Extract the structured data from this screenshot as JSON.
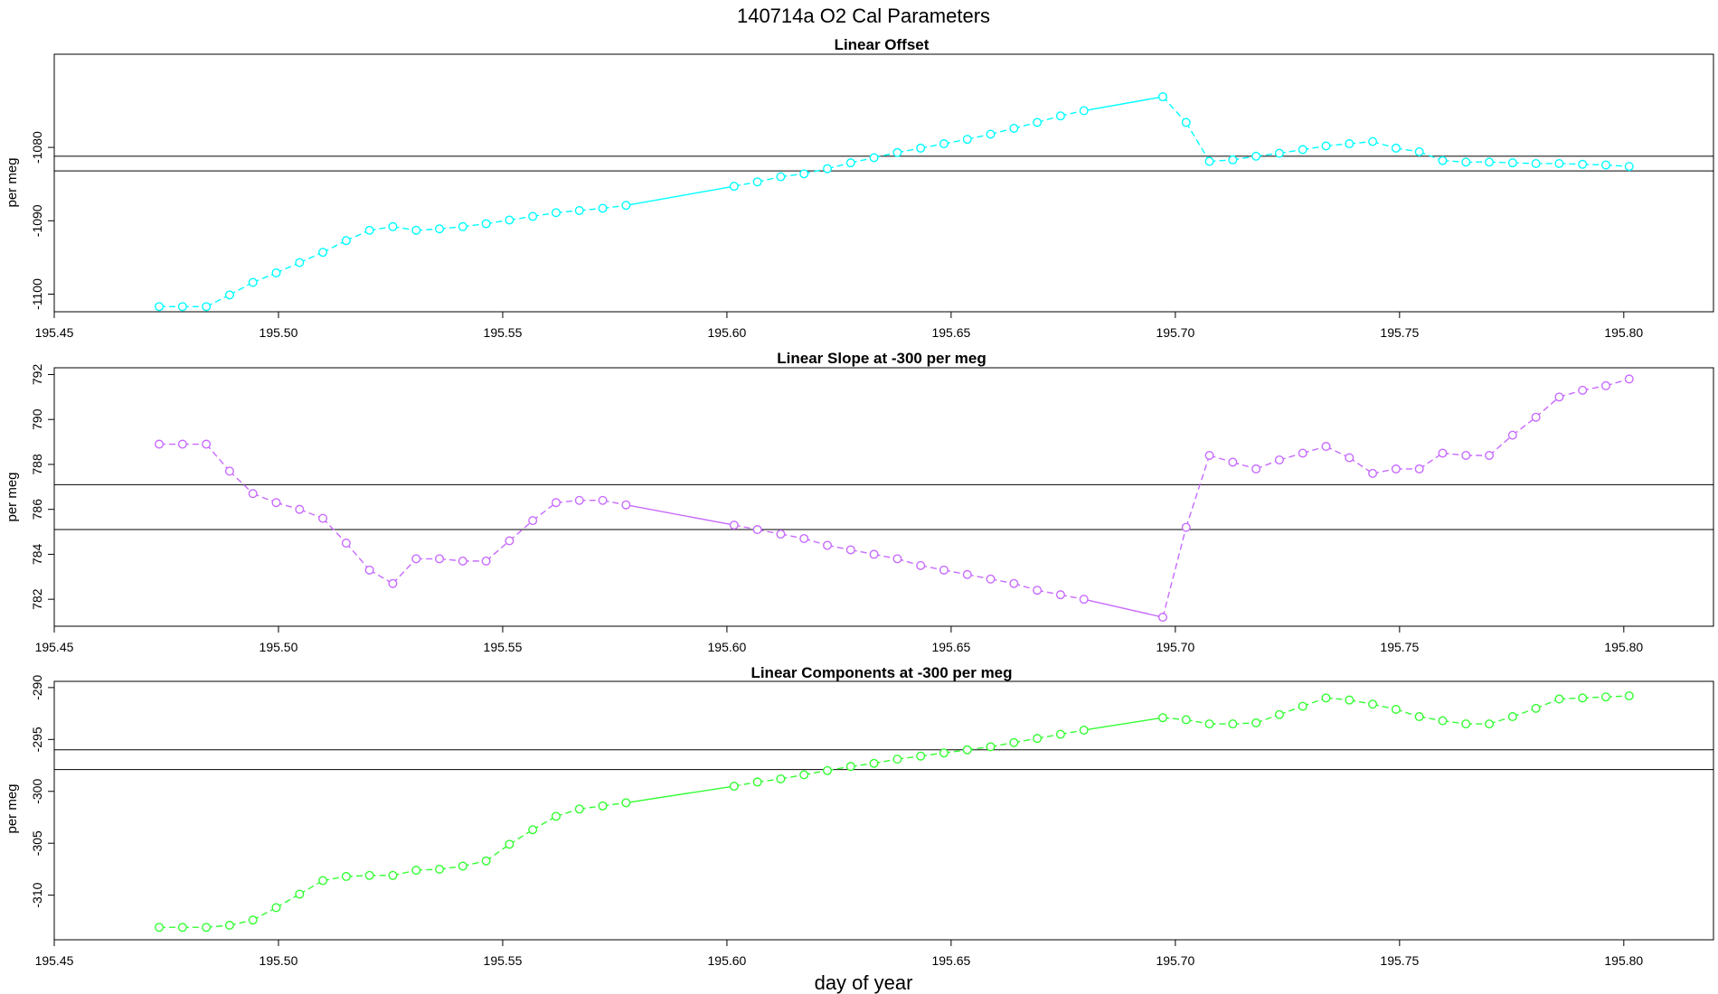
{
  "figure": {
    "title": "140714a   O2 Cal Parameters",
    "xlabel": "day of year"
  },
  "chart_data": [
    {
      "type": "line",
      "title": "Linear Offset",
      "ylabel": "per meg",
      "color": "#00ffff",
      "xlim": [
        195.45,
        195.82
      ],
      "ylim": [
        -1102.4,
        -1067.3
      ],
      "x_ticks": [
        195.45,
        195.5,
        195.55,
        195.6,
        195.65,
        195.7,
        195.75,
        195.8
      ],
      "x_tick_labels": [
        "195.45",
        "195.50",
        "195.55",
        "195.60",
        "195.65",
        "195.70",
        "195.75",
        "195.80"
      ],
      "y_ticks": [
        -1100,
        -1090,
        -1080
      ],
      "y_tick_labels": [
        "-1100",
        "-1090",
        "-1080"
      ],
      "hlines": [
        -1081.2,
        -1083.2
      ],
      "x": [
        195.4734,
        195.4786,
        195.4839,
        195.4891,
        195.4943,
        195.4995,
        195.5047,
        195.5099,
        195.5151,
        195.5203,
        195.5255,
        195.5307,
        195.5359,
        195.5411,
        195.5463,
        195.5515,
        195.5567,
        195.5619,
        195.5671,
        195.5723,
        195.5775,
        195.6016,
        195.6068,
        195.612,
        195.6172,
        195.6224,
        195.6276,
        195.6328,
        195.638,
        195.6432,
        195.6484,
        195.6536,
        195.6588,
        195.664,
        195.6692,
        195.6744,
        195.6796,
        195.6972,
        195.7024,
        195.7076,
        195.7128,
        195.718,
        195.7232,
        195.7284,
        195.7336,
        195.7388,
        195.744,
        195.7492,
        195.7544,
        195.7596,
        195.7648,
        195.77,
        195.7752,
        195.7804,
        195.7856,
        195.7908,
        195.796,
        195.8012
      ],
      "y": [
        -1101.7,
        -1101.7,
        -1101.7,
        -1100.1,
        -1098.4,
        -1097.1,
        -1095.7,
        -1094.3,
        -1092.7,
        -1091.3,
        -1090.8,
        -1091.3,
        -1091.1,
        -1090.8,
        -1090.4,
        -1089.9,
        -1089.4,
        -1088.9,
        -1088.6,
        -1088.3,
        -1087.9,
        -1085.3,
        -1084.7,
        -1084.0,
        -1083.6,
        -1082.9,
        -1082.1,
        -1081.4,
        -1080.7,
        -1080.1,
        -1079.5,
        -1078.9,
        -1078.2,
        -1077.4,
        -1076.6,
        -1075.7,
        -1075.0,
        -1073.1,
        -1076.6,
        -1081.9,
        -1081.7,
        -1081.2,
        -1080.8,
        -1080.3,
        -1079.8,
        -1079.5,
        -1079.2,
        -1080.1,
        -1080.6,
        -1081.8,
        -1082.0,
        -1082.0,
        -1082.1,
        -1082.2,
        -1082.2,
        -1082.3,
        -1082.4,
        -1082.6
      ]
    },
    {
      "type": "line",
      "title": "Linear Slope at -300 per meg",
      "ylabel": "per meg",
      "color": "#c86bff",
      "xlim": [
        195.45,
        195.82
      ],
      "ylim": [
        780.8,
        792.3
      ],
      "x_ticks": [
        195.45,
        195.5,
        195.55,
        195.6,
        195.65,
        195.7,
        195.75,
        195.8
      ],
      "x_tick_labels": [
        "195.45",
        "195.50",
        "195.55",
        "195.60",
        "195.65",
        "195.70",
        "195.75",
        "195.80"
      ],
      "y_ticks": [
        782,
        784,
        786,
        788,
        790,
        792
      ],
      "y_tick_labels": [
        "782",
        "784",
        "786",
        "788",
        "790",
        "792"
      ],
      "hlines": [
        787.1,
        785.1
      ],
      "x": [
        195.4734,
        195.4786,
        195.4839,
        195.4891,
        195.4943,
        195.4995,
        195.5047,
        195.5099,
        195.5151,
        195.5203,
        195.5255,
        195.5307,
        195.5359,
        195.5411,
        195.5463,
        195.5515,
        195.5567,
        195.5619,
        195.5671,
        195.5723,
        195.5775,
        195.6016,
        195.6068,
        195.612,
        195.6172,
        195.6224,
        195.6276,
        195.6328,
        195.638,
        195.6432,
        195.6484,
        195.6536,
        195.6588,
        195.664,
        195.6692,
        195.6744,
        195.6796,
        195.6972,
        195.7024,
        195.7076,
        195.7128,
        195.718,
        195.7232,
        195.7284,
        195.7336,
        195.7388,
        195.744,
        195.7492,
        195.7544,
        195.7596,
        195.7648,
        195.77,
        195.7752,
        195.7804,
        195.7856,
        195.7908,
        195.796,
        195.8012
      ],
      "y": [
        788.9,
        788.9,
        788.9,
        787.7,
        786.7,
        786.3,
        786.0,
        785.6,
        784.5,
        783.3,
        782.7,
        783.8,
        783.8,
        783.7,
        783.7,
        784.6,
        785.5,
        786.3,
        786.4,
        786.4,
        786.2,
        785.3,
        785.1,
        784.9,
        784.7,
        784.4,
        784.2,
        784.0,
        783.8,
        783.5,
        783.3,
        783.1,
        782.9,
        782.7,
        782.4,
        782.2,
        782.0,
        781.2,
        785.2,
        788.4,
        788.1,
        787.8,
        788.2,
        788.5,
        788.8,
        788.3,
        787.6,
        787.8,
        787.8,
        788.5,
        788.4,
        788.4,
        789.3,
        790.1,
        791.0,
        791.3,
        791.5,
        791.8
      ]
    },
    {
      "type": "line",
      "title": "Linear Components at -300 per meg",
      "ylabel": "per meg",
      "color": "#33ff33",
      "xlim": [
        195.45,
        195.82
      ],
      "ylim": [
        -314.3,
        -289.4
      ],
      "x_ticks": [
        195.45,
        195.5,
        195.55,
        195.6,
        195.65,
        195.7,
        195.75,
        195.8
      ],
      "x_tick_labels": [
        "195.45",
        "195.50",
        "195.55",
        "195.60",
        "195.65",
        "195.70",
        "195.75",
        "195.80"
      ],
      "y_ticks": [
        -310,
        -305,
        -300,
        -295,
        -290
      ],
      "y_tick_labels": [
        "-310",
        "-305",
        "-300",
        "-295",
        "-290"
      ],
      "hlines": [
        -296.0,
        -297.9
      ],
      "x": [
        195.4734,
        195.4786,
        195.4839,
        195.4891,
        195.4943,
        195.4995,
        195.5047,
        195.5099,
        195.5151,
        195.5203,
        195.5255,
        195.5307,
        195.5359,
        195.5411,
        195.5463,
        195.5515,
        195.5567,
        195.5619,
        195.5671,
        195.5723,
        195.5775,
        195.6016,
        195.6068,
        195.612,
        195.6172,
        195.6224,
        195.6276,
        195.6328,
        195.638,
        195.6432,
        195.6484,
        195.6536,
        195.6588,
        195.664,
        195.6692,
        195.6744,
        195.6796,
        195.6972,
        195.7024,
        195.7076,
        195.7128,
        195.718,
        195.7232,
        195.7284,
        195.7336,
        195.7388,
        195.744,
        195.7492,
        195.7544,
        195.7596,
        195.7648,
        195.77,
        195.7752,
        195.7804,
        195.7856,
        195.7908,
        195.796,
        195.8012
      ],
      "y": [
        -313.1,
        -313.1,
        -313.1,
        -312.9,
        -312.4,
        -311.2,
        -309.9,
        -308.6,
        -308.2,
        -308.1,
        -308.1,
        -307.6,
        -307.5,
        -307.2,
        -306.7,
        -305.1,
        -303.7,
        -302.4,
        -301.7,
        -301.4,
        -301.1,
        -299.5,
        -299.1,
        -298.8,
        -298.4,
        -298.0,
        -297.6,
        -297.3,
        -296.9,
        -296.6,
        -296.3,
        -296.0,
        -295.7,
        -295.3,
        -294.9,
        -294.5,
        -294.1,
        -292.9,
        -293.1,
        -293.5,
        -293.5,
        -293.4,
        -292.6,
        -291.8,
        -291.0,
        -291.2,
        -291.6,
        -292.1,
        -292.8,
        -293.2,
        -293.5,
        -293.5,
        -292.8,
        -292.0,
        -291.1,
        -291.0,
        -290.9,
        -290.8
      ]
    }
  ]
}
